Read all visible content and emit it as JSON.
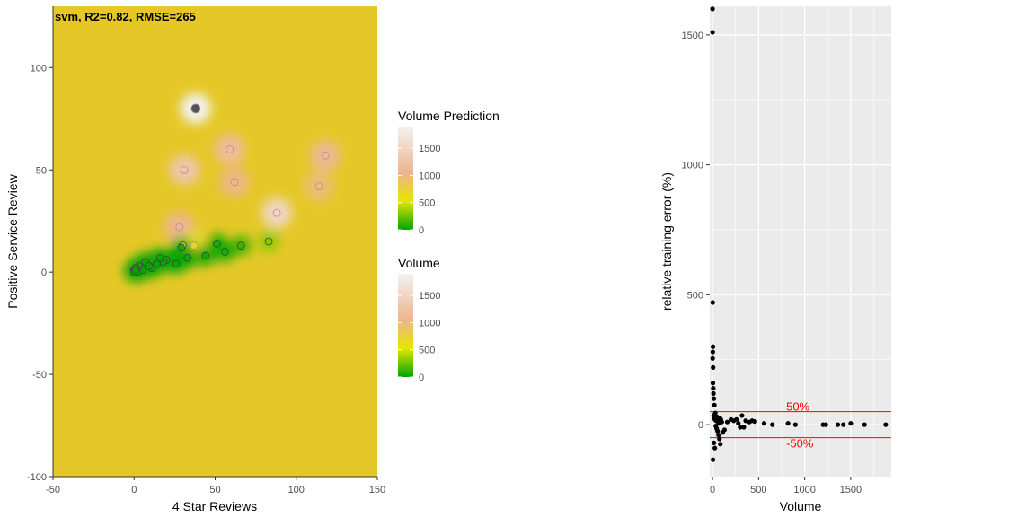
{
  "chart_data": [
    {
      "type": "heatmap",
      "title": "svm, R2=0.82, RMSE=265",
      "xlabel": "4 Star Reviews",
      "ylabel": "Positive Service Review",
      "xlim": [
        -50,
        150
      ],
      "ylim": [
        -100,
        130
      ],
      "x_ticks": [
        -50,
        0,
        50,
        100,
        150
      ],
      "y_ticks": [
        -100,
        -50,
        0,
        50,
        100
      ],
      "background_color": "#E5C827",
      "legends": [
        {
          "title": "Volume Prediction",
          "ticks": [
            0,
            500,
            1000,
            1500
          ]
        },
        {
          "title": "Volume",
          "ticks": [
            0,
            500,
            1000,
            1500
          ]
        }
      ],
      "color_scale": {
        "low": "#00A600",
        "mid": "#E6E600",
        "midhigh": "#EDB48E",
        "high": "#F2F2F2",
        "max": 1900
      },
      "series": [
        {
          "points": [
            {
              "x": 38,
              "y": 80,
              "v": 1900
            },
            {
              "x": 31,
              "y": 50,
              "v": 1300
            },
            {
              "x": 59,
              "y": 60,
              "v": 1150
            },
            {
              "x": 62,
              "y": 44,
              "v": 1000
            },
            {
              "x": 118,
              "y": 57,
              "v": 1100
            },
            {
              "x": 114,
              "y": 42,
              "v": 950
            },
            {
              "x": 88,
              "y": 29,
              "v": 1500
            },
            {
              "x": 28,
              "y": 22,
              "v": 1050
            },
            {
              "x": 37,
              "y": 13,
              "v": 700
            },
            {
              "x": 30,
              "y": 13,
              "v": 400
            },
            {
              "x": 83,
              "y": 15,
              "v": 300
            },
            {
              "x": 66,
              "y": 13,
              "v": 120
            },
            {
              "x": 51,
              "y": 14,
              "v": 30
            },
            {
              "x": 56,
              "y": 10,
              "v": 40
            },
            {
              "x": 44,
              "y": 8,
              "v": 20
            },
            {
              "x": 33,
              "y": 7,
              "v": 10
            },
            {
              "x": 29,
              "y": 12,
              "v": 15
            },
            {
              "x": 26,
              "y": 4,
              "v": 10
            },
            {
              "x": 20,
              "y": 6,
              "v": 10
            },
            {
              "x": 18,
              "y": 5,
              "v": 5
            },
            {
              "x": 14,
              "y": 4,
              "v": 5
            },
            {
              "x": 11,
              "y": 2,
              "v": 5
            },
            {
              "x": 7,
              "y": 5,
              "v": 5
            },
            {
              "x": 5,
              "y": 1,
              "v": 5
            },
            {
              "x": 3,
              "y": 3,
              "v": 5
            },
            {
              "x": 2,
              "y": 0,
              "v": 5
            },
            {
              "x": 1,
              "y": 2,
              "v": 5
            },
            {
              "x": 0,
              "y": 1,
              "v": 0
            },
            {
              "x": 0,
              "y": 0,
              "v": 0
            },
            {
              "x": 1,
              "y": 1,
              "v": 0
            },
            {
              "x": 9,
              "y": 3,
              "v": 5
            },
            {
              "x": 16,
              "y": 7,
              "v": 5
            }
          ]
        }
      ]
    },
    {
      "type": "scatter",
      "xlabel": "Volume",
      "ylabel": "relative training error (%)",
      "xlim": [
        -30,
        1940
      ],
      "ylim": [
        -200,
        1610
      ],
      "x_ticks": [
        0,
        500,
        1000,
        1500
      ],
      "y_ticks": [
        0,
        500,
        1000,
        1500
      ],
      "panel_color": "#EBEBEB",
      "reference_lines": [
        {
          "y": 50,
          "label": "50%",
          "color": "#FF0000"
        },
        {
          "y": -50,
          "label": "-50%",
          "color": "#FF0000"
        }
      ],
      "series": [
        {
          "points": [
            {
              "x": 0,
              "y": 1600
            },
            {
              "x": 0,
              "y": 1510
            },
            {
              "x": 2,
              "y": 470
            },
            {
              "x": 5,
              "y": 300
            },
            {
              "x": 3,
              "y": 280
            },
            {
              "x": 1,
              "y": 255
            },
            {
              "x": 6,
              "y": 220
            },
            {
              "x": 4,
              "y": 160
            },
            {
              "x": 8,
              "y": 140
            },
            {
              "x": 10,
              "y": 120
            },
            {
              "x": 15,
              "y": 100
            },
            {
              "x": 20,
              "y": 75
            },
            {
              "x": 30,
              "y": 45
            },
            {
              "x": 12,
              "y": 35
            },
            {
              "x": 18,
              "y": 25
            },
            {
              "x": 25,
              "y": 20
            },
            {
              "x": 40,
              "y": 15
            },
            {
              "x": 50,
              "y": 30
            },
            {
              "x": 60,
              "y": 10
            },
            {
              "x": 70,
              "y": 5
            },
            {
              "x": 80,
              "y": 25
            },
            {
              "x": 90,
              "y": 20
            },
            {
              "x": 100,
              "y": 10
            },
            {
              "x": 35,
              "y": -5
            },
            {
              "x": 45,
              "y": -15
            },
            {
              "x": 55,
              "y": -25
            },
            {
              "x": 65,
              "y": -40
            },
            {
              "x": 75,
              "y": -55
            },
            {
              "x": 85,
              "y": -75
            },
            {
              "x": 15,
              "y": -70
            },
            {
              "x": 25,
              "y": -90
            },
            {
              "x": 5,
              "y": -135
            },
            {
              "x": 110,
              "y": -30
            },
            {
              "x": 130,
              "y": -20
            },
            {
              "x": 160,
              "y": 10
            },
            {
              "x": 200,
              "y": 20
            },
            {
              "x": 230,
              "y": 15
            },
            {
              "x": 260,
              "y": 20
            },
            {
              "x": 280,
              "y": 5
            },
            {
              "x": 300,
              "y": -10
            },
            {
              "x": 320,
              "y": 35
            },
            {
              "x": 340,
              "y": -10
            },
            {
              "x": 360,
              "y": 15
            },
            {
              "x": 400,
              "y": 10
            },
            {
              "x": 430,
              "y": 15
            },
            {
              "x": 460,
              "y": 12
            },
            {
              "x": 560,
              "y": 5
            },
            {
              "x": 650,
              "y": 0
            },
            {
              "x": 820,
              "y": 5
            },
            {
              "x": 900,
              "y": 0
            },
            {
              "x": 1200,
              "y": 0
            },
            {
              "x": 1230,
              "y": 0
            },
            {
              "x": 1360,
              "y": 0
            },
            {
              "x": 1420,
              "y": 0
            },
            {
              "x": 1500,
              "y": 5
            },
            {
              "x": 1650,
              "y": 0
            },
            {
              "x": 1880,
              "y": 0
            }
          ]
        }
      ]
    }
  ]
}
